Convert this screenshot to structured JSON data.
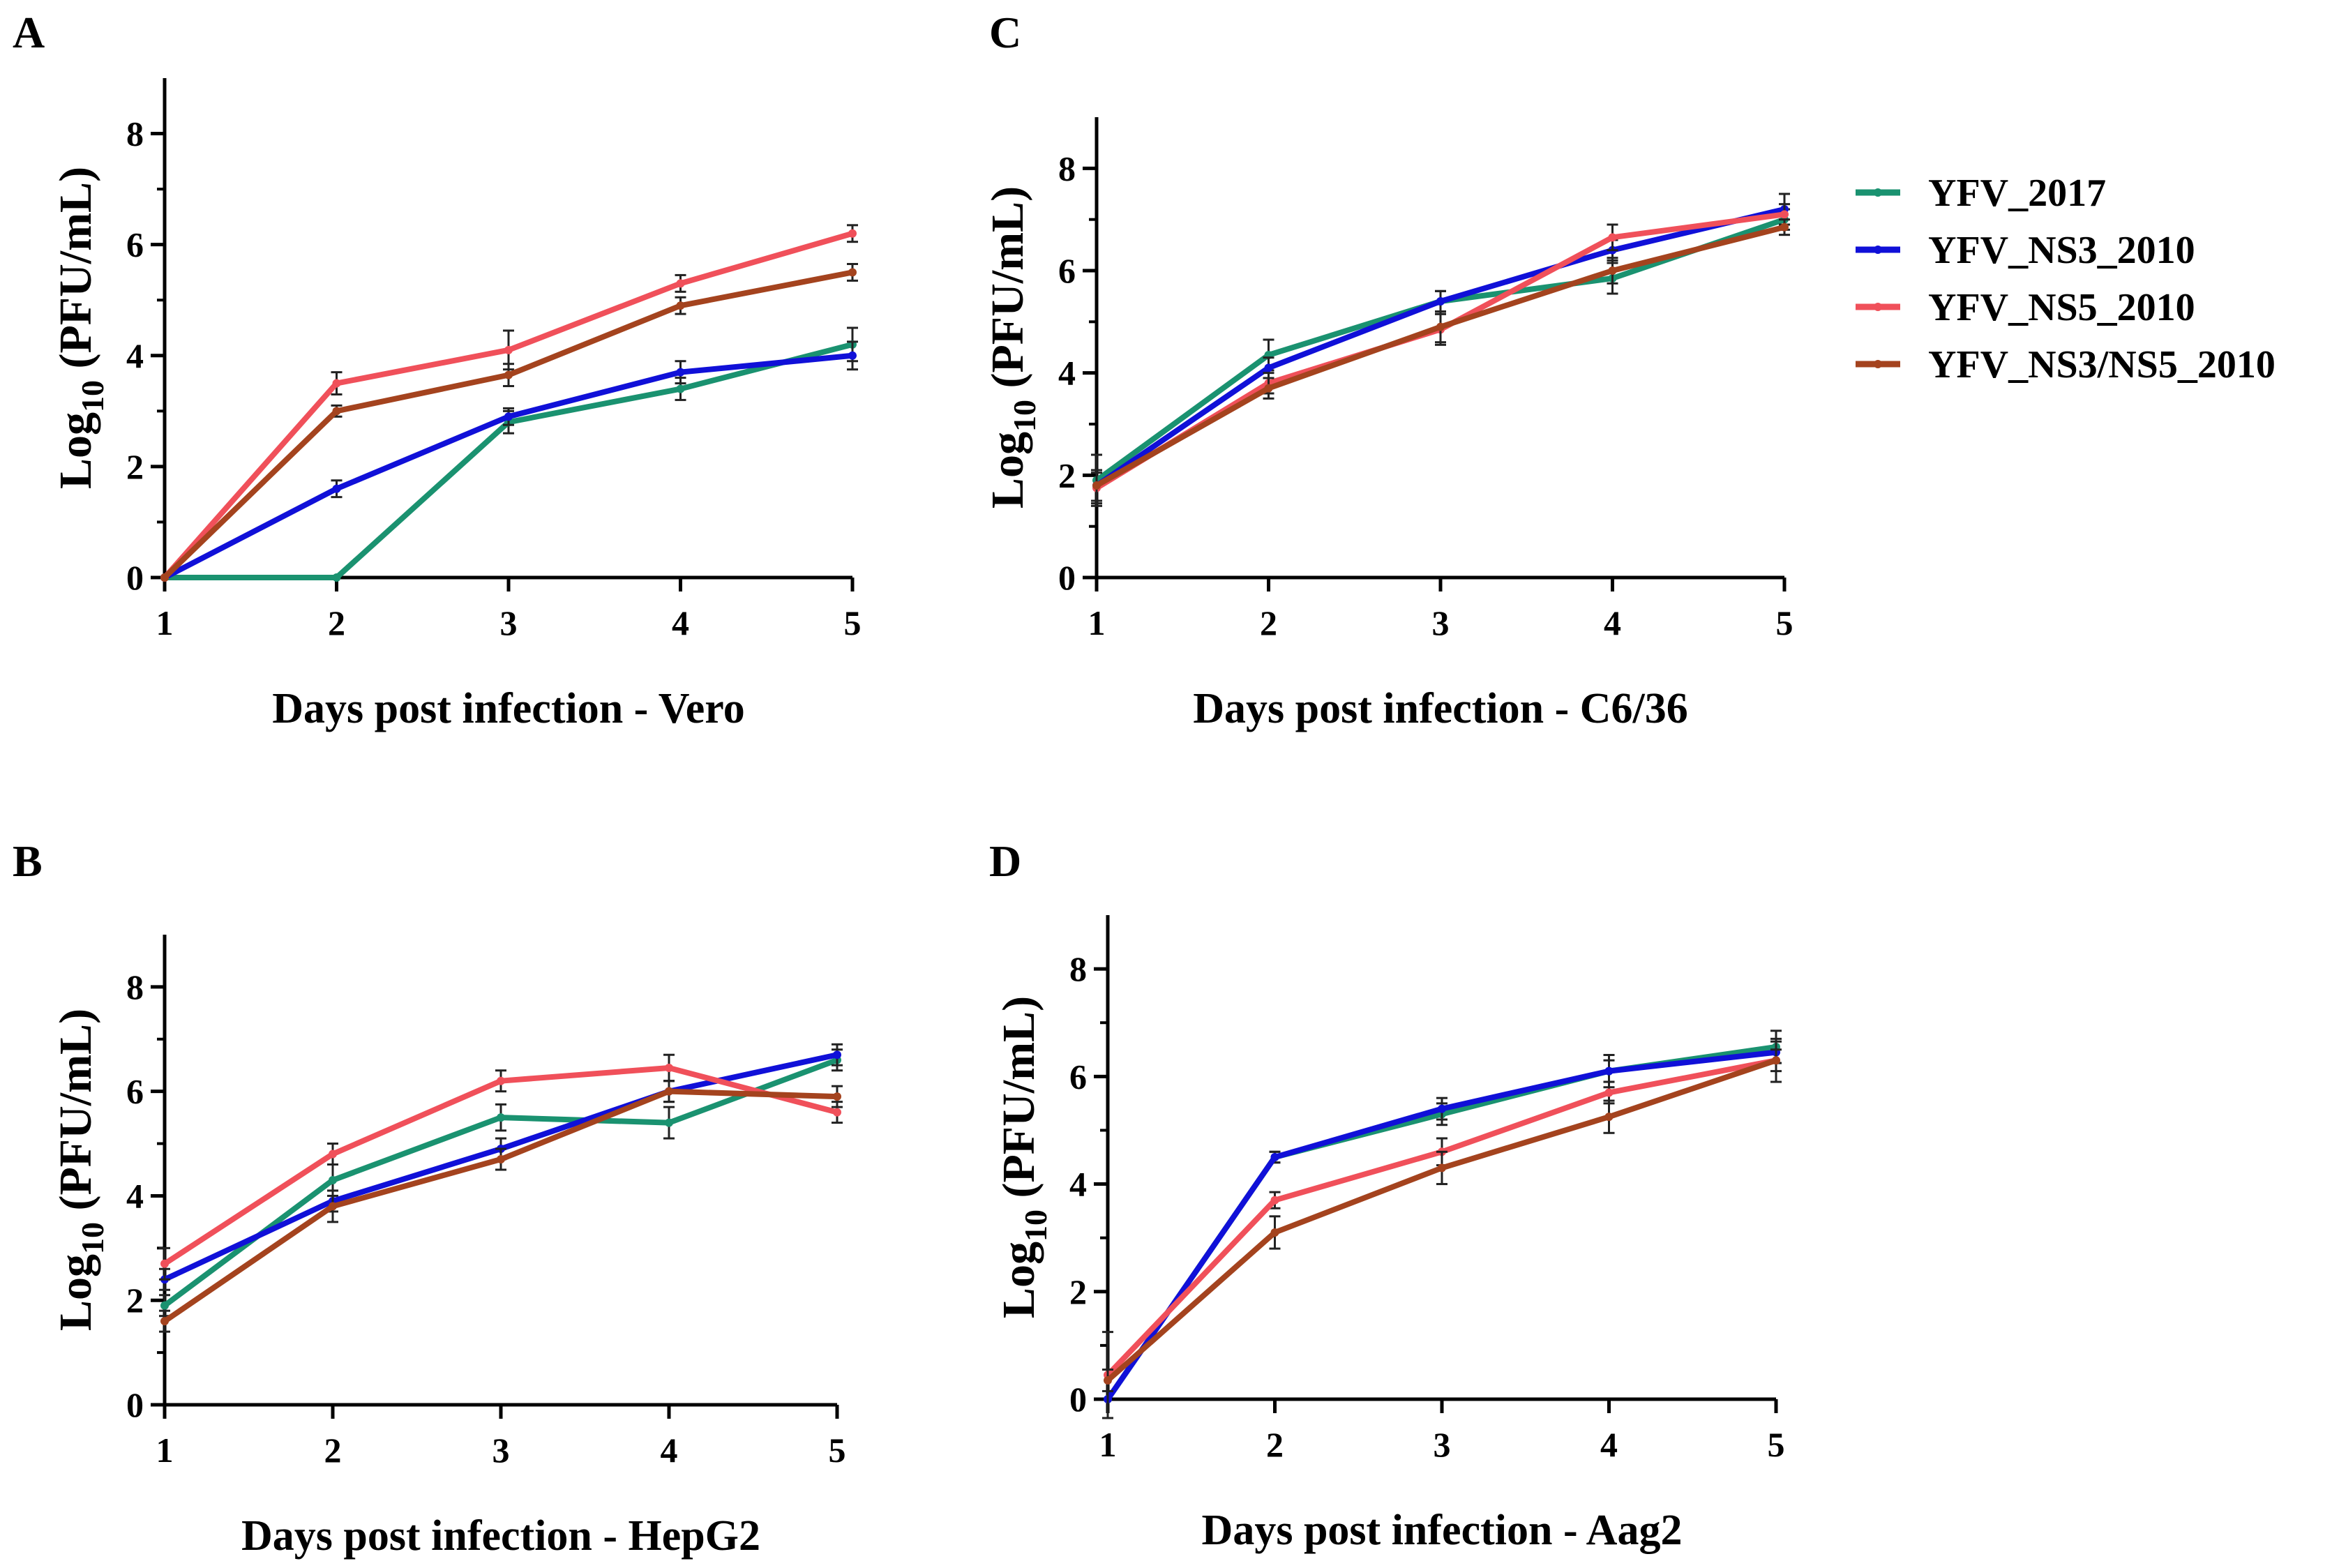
{
  "legend": [
    {
      "name": "YFV_2017",
      "color": "#1a9270"
    },
    {
      "name": "YFV_NS3_2010",
      "color": "#1010d8"
    },
    {
      "name": "YFV_NS5_2010",
      "color": "#f0505a"
    },
    {
      "name": "YFV_NS3/NS5_2010",
      "color": "#a4431e"
    }
  ],
  "chart_data": [
    {
      "type": "line",
      "panel": "A",
      "xlabel": "Days post infection - Vero",
      "ylabel_main": "Log",
      "ylabel_sub": "10",
      "ylabel_rest": " (PFU/mL)",
      "x": [
        1,
        2,
        3,
        4,
        5
      ],
      "ylim": [
        0,
        9
      ],
      "yticks": [
        0,
        2,
        4,
        6,
        8
      ],
      "series": [
        {
          "name": "YFV_2017",
          "values": [
            0,
            0,
            2.8,
            3.4,
            4.2
          ],
          "errors": [
            0,
            0,
            0.2,
            0.2,
            0.3
          ]
        },
        {
          "name": "YFV_NS3_2010",
          "values": [
            0,
            1.6,
            2.9,
            3.7,
            4.0
          ],
          "errors": [
            0,
            0.15,
            0.15,
            0.2,
            0.25
          ]
        },
        {
          "name": "YFV_NS5_2010",
          "values": [
            0,
            3.5,
            4.1,
            5.3,
            6.2
          ],
          "errors": [
            0,
            0.2,
            0.35,
            0.15,
            0.15
          ]
        },
        {
          "name": "YFV_NS3/NS5_2010",
          "values": [
            0,
            3.0,
            3.65,
            4.9,
            5.5
          ],
          "errors": [
            0,
            0.1,
            0.2,
            0.15,
            0.15
          ]
        }
      ]
    },
    {
      "type": "line",
      "panel": "B",
      "xlabel": "Days post infection - HepG2",
      "ylabel_main": "Log",
      "ylabel_sub": "10",
      "ylabel_rest": " (PFU/mL)",
      "x": [
        1,
        2,
        3,
        4,
        5
      ],
      "ylim": [
        0,
        9
      ],
      "yticks": [
        0,
        2,
        4,
        6,
        8
      ],
      "series": [
        {
          "name": "YFV_2017",
          "values": [
            1.9,
            4.3,
            5.5,
            5.4,
            6.6
          ],
          "errors": [
            0.2,
            0.3,
            0.25,
            0.3,
            0.2
          ]
        },
        {
          "name": "YFV_NS3_2010",
          "values": [
            2.4,
            3.9,
            4.9,
            6.0,
            6.7
          ],
          "errors": [
            0.2,
            0.2,
            0.2,
            0.2,
            0.2
          ]
        },
        {
          "name": "YFV_NS5_2010",
          "values": [
            2.7,
            4.8,
            6.2,
            6.45,
            5.6
          ],
          "errors": [
            0.3,
            0.2,
            0.2,
            0.25,
            0.2
          ]
        },
        {
          "name": "YFV_NS3/NS5_2010",
          "values": [
            1.6,
            3.8,
            4.7,
            6.0,
            5.9
          ],
          "errors": [
            0.2,
            0.3,
            0.2,
            0.2,
            0.2
          ]
        }
      ]
    },
    {
      "type": "line",
      "panel": "C",
      "xlabel": "Days post infection - C6/36",
      "ylabel_main": "Log",
      "ylabel_sub": "10",
      "ylabel_rest": " (PFU/mL)",
      "x": [
        1,
        2,
        3,
        4,
        5
      ],
      "ylim": [
        0,
        9
      ],
      "yticks": [
        0,
        2,
        4,
        6,
        8
      ],
      "series": [
        {
          "name": "YFV_2017",
          "values": [
            1.9,
            4.35,
            5.4,
            5.85,
            7.0
          ],
          "errors": [
            0.5,
            0.3,
            0.2,
            0.3,
            0.2
          ]
        },
        {
          "name": "YFV_NS3_2010",
          "values": [
            1.8,
            4.1,
            5.4,
            6.4,
            7.2
          ],
          "errors": [
            0.3,
            0.2,
            0.2,
            0.2,
            0.3
          ]
        },
        {
          "name": "YFV_NS5_2010",
          "values": [
            1.75,
            3.8,
            4.85,
            6.65,
            7.1
          ],
          "errors": [
            0.3,
            0.2,
            0.3,
            0.25,
            0.2
          ]
        },
        {
          "name": "YFV_NS3/NS5_2010",
          "values": [
            1.8,
            3.7,
            4.9,
            6.0,
            6.85
          ],
          "errors": [
            0.3,
            0.2,
            0.3,
            0.25,
            0.15
          ]
        }
      ]
    },
    {
      "type": "line",
      "panel": "D",
      "xlabel": "Days post infection - Aag2",
      "ylabel_main": "Log",
      "ylabel_sub": "10",
      "ylabel_rest": " (PFU/mL)",
      "x": [
        1,
        2,
        3,
        4,
        5
      ],
      "ylim": [
        0,
        9
      ],
      "yticks": [
        0,
        2,
        4,
        6,
        8
      ],
      "series": [
        {
          "name": "YFV_2017",
          "values": [
            0,
            4.5,
            5.3,
            6.1,
            6.55
          ],
          "errors": [
            0,
            0.1,
            0.2,
            0.3,
            0.3
          ]
        },
        {
          "name": "YFV_NS3_2010",
          "values": [
            0,
            4.5,
            5.4,
            6.1,
            6.45
          ],
          "errors": [
            0,
            0.1,
            0.2,
            0.2,
            0.2
          ]
        },
        {
          "name": "YFV_NS5_2010",
          "values": [
            0.45,
            3.7,
            4.6,
            5.7,
            6.3
          ],
          "errors": [
            0.8,
            0.15,
            0.25,
            0.2,
            0.2
          ]
        },
        {
          "name": "YFV_NS3/NS5_2010",
          "values": [
            0.35,
            3.1,
            4.3,
            5.25,
            6.3
          ],
          "errors": [
            0.2,
            0.3,
            0.3,
            0.3,
            0.4
          ]
        }
      ]
    }
  ]
}
